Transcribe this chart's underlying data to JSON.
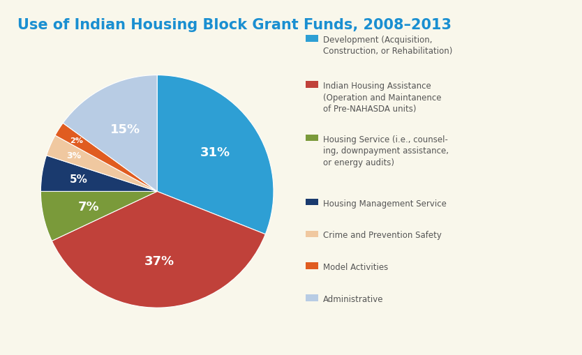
{
  "title": "Use of Indian Housing Block Grant Funds, 2008–2013",
  "title_color": "#1a8fd1",
  "title_fontsize": 15,
  "background_color": "#f9f7eb",
  "slices": [
    31,
    37,
    7,
    5,
    3,
    2,
    15
  ],
  "slice_colors": [
    "#2e9fd4",
    "#c0413a",
    "#7a9a3a",
    "#1a3a6e",
    "#f0c8a0",
    "#e05c20",
    "#b8cce4"
  ],
  "slice_labels": [
    "31%",
    "37%",
    "7%",
    "5%",
    "3%",
    "2%",
    "15%"
  ],
  "legend_labels": [
    "Development (Acquisition,\nConstruction, or Rehabilitation)",
    "Indian Housing Assistance\n(Operation and Maintanence\nof Pre-NAHASDA units)",
    "Housing Service (i.e., counsel-\ning, downpayment assistance,\nor energy audits)",
    "Housing Management Service",
    "Crime and Prevention Safety",
    "Model Activities",
    "Administrative"
  ],
  "legend_colors": [
    "#2e9fd4",
    "#c0413a",
    "#7a9a3a",
    "#1a3a6e",
    "#f0c8a0",
    "#e05c20",
    "#b8cce4"
  ],
  "startangle": 90,
  "label_fontsize": 13,
  "label_color": "#ffffff"
}
